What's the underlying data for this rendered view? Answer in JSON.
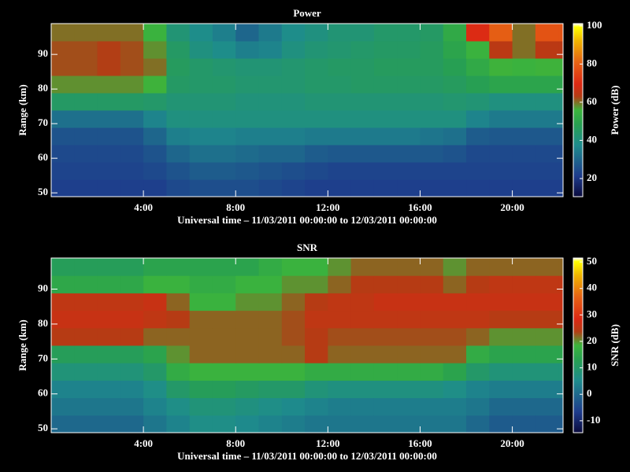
{
  "chart_data": [
    {
      "type": "heatmap",
      "title": "Power",
      "xlabel": "Universal time – 11/03/2011 00:00:00 to 12/03/2011 00:00:00",
      "ylabel": "Range (km)",
      "colorbar_label": "Power (dB)",
      "xlim": [
        0,
        22.2
      ],
      "xticks": [
        {
          "value": 4,
          "label": "4:00"
        },
        {
          "value": 8,
          "label": "8:00"
        },
        {
          "value": 12,
          "label": "12:00"
        },
        {
          "value": 16,
          "label": "16:00"
        },
        {
          "value": 20,
          "label": "20:00"
        }
      ],
      "ylim": [
        48.9,
        98.9
      ],
      "yticks": [
        50,
        60,
        70,
        80,
        90
      ],
      "xbins": [
        0,
        1,
        2,
        3,
        4,
        5,
        6,
        7,
        8,
        9,
        10,
        11,
        12,
        13,
        14,
        15,
        16,
        17,
        18,
        19,
        20,
        21,
        22,
        22.2
      ],
      "ybins": [
        48.9,
        53.9,
        58.9,
        63.9,
        68.9,
        73.9,
        78.9,
        83.9,
        88.9,
        93.9,
        98.9
      ],
      "clim": [
        10.5,
        101.2
      ],
      "cticks": [
        20,
        40,
        60,
        80,
        100
      ],
      "colorscale": [
        [
          0,
          "#0a0a3c"
        ],
        [
          0.12,
          "#1e3c8c"
        ],
        [
          0.3,
          "#1e8c8c"
        ],
        [
          0.42,
          "#28a050"
        ],
        [
          0.5,
          "#3cb43c"
        ],
        [
          0.58,
          "#b43c14"
        ],
        [
          0.65,
          "#dc2814"
        ],
        [
          0.78,
          "#e66414"
        ],
        [
          0.9,
          "#f0b400"
        ],
        [
          0.98,
          "#ffff00"
        ],
        [
          1,
          "#ffffff"
        ]
      ],
      "values": [
        [
          22,
          22,
          22,
          22,
          22,
          24,
          25,
          25,
          25,
          24,
          23,
          22,
          22,
          22,
          22,
          22,
          22,
          22,
          22,
          22,
          22,
          22,
          22
        ],
        [
          23,
          23,
          23,
          23,
          24,
          26,
          28,
          28,
          27,
          26,
          25,
          24,
          23,
          23,
          23,
          23,
          23,
          23,
          23,
          23,
          23,
          23,
          23
        ],
        [
          24,
          24,
          24,
          24,
          26,
          30,
          32,
          32,
          31,
          30,
          30,
          28,
          27,
          27,
          27,
          27,
          27,
          26,
          24,
          24,
          24,
          24,
          24
        ],
        [
          26,
          26,
          26,
          26,
          30,
          35,
          36,
          36,
          35,
          35,
          35,
          34,
          34,
          34,
          34,
          34,
          33,
          32,
          28,
          27,
          27,
          27,
          27
        ],
        [
          32,
          32,
          32,
          32,
          36,
          40,
          40,
          40,
          40,
          40,
          40,
          40,
          40,
          40,
          40,
          40,
          40,
          40,
          36,
          34,
          34,
          34,
          34
        ],
        [
          45,
          45,
          45,
          45,
          44,
          42,
          42,
          42,
          41,
          41,
          41,
          42,
          42,
          42,
          42,
          42,
          42,
          43,
          42,
          40,
          40,
          40,
          40
        ],
        [
          58,
          58,
          58,
          58,
          56,
          45,
          44,
          44,
          43,
          43,
          43,
          44,
          44,
          45,
          45,
          45,
          45,
          46,
          48,
          50,
          50,
          50,
          50
        ],
        [
          62,
          62,
          63,
          62,
          60,
          46,
          44,
          43,
          42,
          42,
          43,
          44,
          45,
          45,
          46,
          46,
          46,
          48,
          52,
          56,
          55,
          56,
          56
        ],
        [
          62,
          62,
          63,
          62,
          58,
          45,
          40,
          38,
          35,
          36,
          40,
          42,
          43,
          44,
          45,
          45,
          46,
          50,
          55,
          64,
          60,
          64,
          64
        ],
        [
          60,
          60,
          60,
          60,
          55,
          42,
          38,
          35,
          30,
          34,
          38,
          40,
          42,
          42,
          44,
          44,
          45,
          52,
          70,
          80,
          60,
          78,
          78
        ]
      ]
    },
    {
      "type": "heatmap",
      "title": "SNR",
      "xlabel": "Universal time – 11/03/2011 00:00:00 to 12/03/2011 00:00:00",
      "ylabel": "Range (km)",
      "colorbar_label": "SNR (dB)",
      "xlim": [
        0,
        22.2
      ],
      "xticks": [
        {
          "value": 4,
          "label": "4:00"
        },
        {
          "value": 8,
          "label": "8:00"
        },
        {
          "value": 12,
          "label": "12:00"
        },
        {
          "value": 16,
          "label": "16:00"
        },
        {
          "value": 20,
          "label": "20:00"
        }
      ],
      "ylim": [
        48.9,
        98.9
      ],
      "yticks": [
        50,
        60,
        70,
        80,
        90
      ],
      "xbins": [
        0,
        1,
        2,
        3,
        4,
        5,
        6,
        7,
        8,
        9,
        10,
        11,
        12,
        13,
        14,
        15,
        16,
        17,
        18,
        19,
        20,
        21,
        22,
        22.2
      ],
      "ybins": [
        48.9,
        53.9,
        58.9,
        63.9,
        68.9,
        73.9,
        78.9,
        83.9,
        88.9,
        93.9,
        98.9
      ],
      "clim": [
        -14.5,
        51.5
      ],
      "cticks": [
        -10,
        0,
        10,
        20,
        30,
        40,
        50
      ],
      "colorscale": [
        [
          0,
          "#0a0a3c"
        ],
        [
          0.12,
          "#1e3c8c"
        ],
        [
          0.3,
          "#1e8c8c"
        ],
        [
          0.42,
          "#28a050"
        ],
        [
          0.5,
          "#3cb43c"
        ],
        [
          0.58,
          "#b43c14"
        ],
        [
          0.65,
          "#dc2814"
        ],
        [
          0.78,
          "#e66414"
        ],
        [
          0.9,
          "#f0b400"
        ],
        [
          0.98,
          "#ffff00"
        ],
        [
          1,
          "#ffffff"
        ]
      ],
      "values": [
        [
          0,
          0,
          0,
          0,
          2,
          4,
          6,
          6,
          5,
          4,
          3,
          2,
          2,
          2,
          2,
          2,
          2,
          2,
          0,
          -2,
          -2,
          -2,
          -2
        ],
        [
          2,
          2,
          2,
          2,
          4,
          6,
          8,
          8,
          7,
          6,
          5,
          4,
          3,
          3,
          3,
          3,
          3,
          3,
          2,
          0,
          0,
          0,
          0
        ],
        [
          4,
          4,
          4,
          4,
          6,
          10,
          12,
          12,
          11,
          10,
          10,
          8,
          7,
          7,
          7,
          7,
          7,
          6,
          4,
          3,
          3,
          3,
          3
        ],
        [
          8,
          8,
          8,
          8,
          10,
          16,
          18,
          18,
          18,
          18,
          18,
          16,
          16,
          16,
          16,
          16,
          16,
          14,
          10,
          8,
          8,
          8,
          8
        ],
        [
          12,
          12,
          12,
          12,
          14,
          20,
          22,
          22,
          22,
          22,
          22,
          24,
          22,
          22,
          22,
          22,
          22,
          22,
          16,
          14,
          14,
          14,
          14
        ],
        [
          24,
          24,
          24,
          24,
          22,
          22,
          22,
          22,
          22,
          22,
          23,
          24,
          23,
          23,
          23,
          23,
          23,
          23,
          22,
          20,
          20,
          20,
          20
        ],
        [
          26,
          26,
          26,
          26,
          25,
          24,
          22,
          22,
          22,
          22,
          23,
          25,
          25,
          25,
          25,
          25,
          25,
          25,
          25,
          24,
          24,
          24,
          24
        ],
        [
          25,
          25,
          25,
          25,
          26,
          22,
          18,
          18,
          20,
          20,
          22,
          24,
          25,
          25,
          26,
          26,
          26,
          26,
          26,
          26,
          26,
          26,
          26
        ],
        [
          15,
          15,
          15,
          15,
          18,
          18,
          16,
          16,
          18,
          18,
          20,
          20,
          22,
          24,
          24,
          24,
          24,
          22,
          24,
          25,
          25,
          25,
          25
        ],
        [
          12,
          12,
          12,
          12,
          14,
          14,
          14,
          14,
          14,
          16,
          18,
          18,
          20,
          22,
          22,
          22,
          22,
          20,
          22,
          22,
          22,
          22,
          22
        ]
      ]
    }
  ]
}
